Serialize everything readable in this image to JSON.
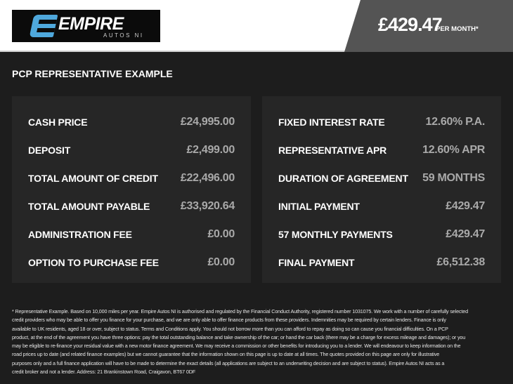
{
  "header": {
    "logo_text": "EMPIRE",
    "logo_sub": "AUTOS NI",
    "price": "£429.47",
    "per_month": "PER MONTH*"
  },
  "colors": {
    "accent": "#4fa8dc",
    "price_box": "#545454",
    "background": "#1d1d1d",
    "panel": "#262626"
  },
  "title": "PCP REPRESENTATIVE EXAMPLE",
  "left_panel": [
    {
      "label": "CASH PRICE",
      "value": "£24,995.00"
    },
    {
      "label": "DEPOSIT",
      "value": "£2,499.00"
    },
    {
      "label": "TOTAL AMOUNT OF CREDIT",
      "value": "£22,496.00"
    },
    {
      "label": "TOTAL AMOUNT PAYABLE",
      "value": "£33,920.64"
    },
    {
      "label": "ADMINISTRATION FEE",
      "value": "£0.00"
    },
    {
      "label": "OPTION TO PURCHASE FEE",
      "value": "£0.00"
    }
  ],
  "right_panel": [
    {
      "label": "FIXED INTEREST RATE",
      "value": "12.60% P.A."
    },
    {
      "label": "REPRESENTATIVE APR",
      "value": "12.60% APR"
    },
    {
      "label": "DURATION OF AGREEMENT",
      "value": "59 MONTHS"
    },
    {
      "label": "INITIAL PAYMENT",
      "value": "£429.47"
    },
    {
      "label": "57 MONTHLY PAYMENTS",
      "value": "£429.47"
    },
    {
      "label": "FINAL PAYMENT",
      "value": "£6,512.38"
    }
  ],
  "disclaimer": [
    "* Representative Example. Based on 10,000 miles per year. Empire Autos NI is authorised and regulated by the Financial Conduct Authority, registered number 1031075. We work with a number of carefully selected",
    "credit providers who may be able to offer you finance for your purchase, and we are only able to offer finance products from these providers. Indemnities may be required by certain lenders. Finance is only",
    "available to UK residents, aged 18 or over, subject to status. Terms and Conditions apply. You should not borrow more than you can afford to repay as doing so can cause you financial difficulties. On a PCP",
    "product, at the end of the agreement you have three options: pay the total outstanding balance and take ownership of the car; or hand the car back (there may be a charge for excess mileage and damages); or you",
    "may be eligible to re-finance your residual value with a new motor finance agreement. We may receive a commission or other benefits for introducing you to a lender. We will endeavour to keep information on the",
    "road prices up to date (and related finance examples) but we cannot guarantee that the information shown on this page is up to date at all times. The quotes provided on this page are only for illustrative",
    "purposes only and a full finance application will have to be made to determine the exact details (all applications are subject to an underwriting decision and are subject to status). Empire Autos NI acts as a",
    "credit broker and not a lender. Address: 21 Brankinstown Road, Craigavon, BT67 0DF"
  ]
}
